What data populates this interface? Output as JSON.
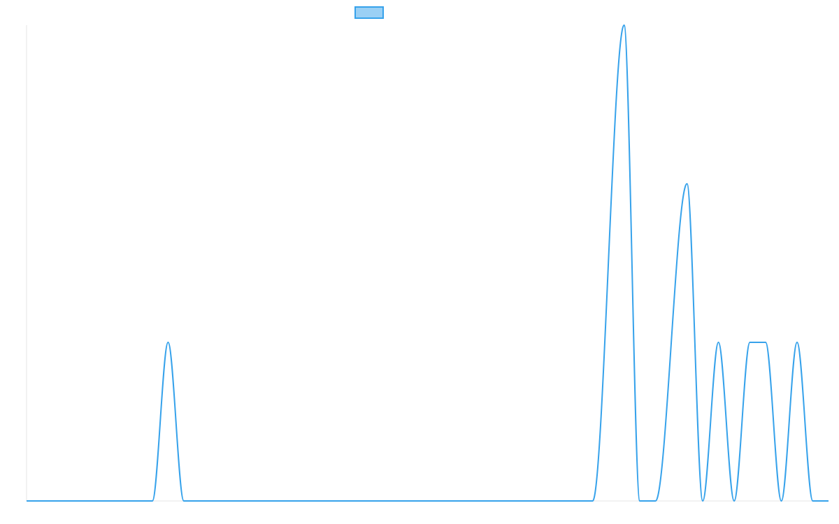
{
  "chart_data": {
    "type": "line",
    "title": "",
    "xlabel": "",
    "ylabel": "",
    "grid": false,
    "legend_position": "top-center",
    "colors": {
      "line": "#36a2eb",
      "legend_fill": "#9ad0f5",
      "axis": "#e6e6e6"
    },
    "xlim": [
      0,
      51
    ],
    "ylim": [
      0,
      3
    ],
    "series": [
      {
        "name": "",
        "x": [
          0,
          8,
          9,
          10,
          36,
          38,
          39,
          40,
          42,
          43,
          44,
          45,
          46,
          47,
          48,
          49,
          50,
          51
        ],
        "y": [
          0,
          0,
          1,
          0,
          0,
          3,
          0,
          0,
          2,
          0,
          1,
          0,
          1,
          1,
          0,
          1,
          0,
          0
        ]
      }
    ]
  }
}
